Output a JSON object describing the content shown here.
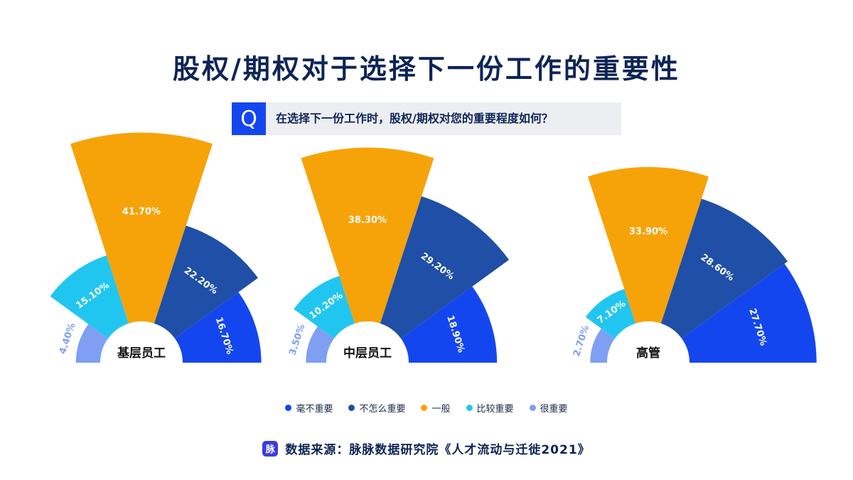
{
  "title": "股权/期权对于选择下一份工作的重要性",
  "question": {
    "badge": "Q",
    "text": "在选择下一份工作时，股权/期权对您的重要程度如何？"
  },
  "colors": {
    "毫不重要": "#1446f0",
    "不怎么重要": "#1f4fa6",
    "一般": "#f6a30a",
    "比较重要": "#21c6f0",
    "很重要": "#7e9ff2"
  },
  "legend": [
    {
      "label": "毫不重要",
      "color": "#1446f0"
    },
    {
      "label": "不怎么重要",
      "color": "#1f4fa6"
    },
    {
      "label": "一般",
      "color": "#f6a30a"
    },
    {
      "label": "比较重要",
      "color": "#21c6f0"
    },
    {
      "label": "很重要",
      "color": "#7e9ff2"
    }
  ],
  "source": {
    "logo": "脉",
    "text": "数据来源：脉脉数据研究院《人才流动与迁徙2021》"
  },
  "chart_data": [
    {
      "type": "pie",
      "name": "基层员工",
      "categories": [
        "很重要",
        "比较重要",
        "一般",
        "不怎么重要",
        "毫不重要"
      ],
      "values": [
        4.4,
        15.1,
        41.7,
        22.2,
        16.7
      ],
      "labels": [
        "4.40%",
        "15.10%",
        "41.70%",
        "22.20%",
        "16.70%"
      ]
    },
    {
      "type": "pie",
      "name": "中层员工",
      "categories": [
        "很重要",
        "比较重要",
        "一般",
        "不怎么重要",
        "毫不重要"
      ],
      "values": [
        3.5,
        10.2,
        38.3,
        29.2,
        18.9
      ],
      "labels": [
        "3.50%",
        "10.20%",
        "38.30%",
        "29.20%",
        "18.90%"
      ]
    },
    {
      "type": "pie",
      "name": "高管",
      "categories": [
        "很重要",
        "比较重要",
        "一般",
        "不怎么重要",
        "毫不重要"
      ],
      "values": [
        2.7,
        7.1,
        33.9,
        28.6,
        27.7
      ],
      "labels": [
        "2.70%",
        "7.10%",
        "33.90%",
        "28.60%",
        "27.70%"
      ]
    }
  ]
}
